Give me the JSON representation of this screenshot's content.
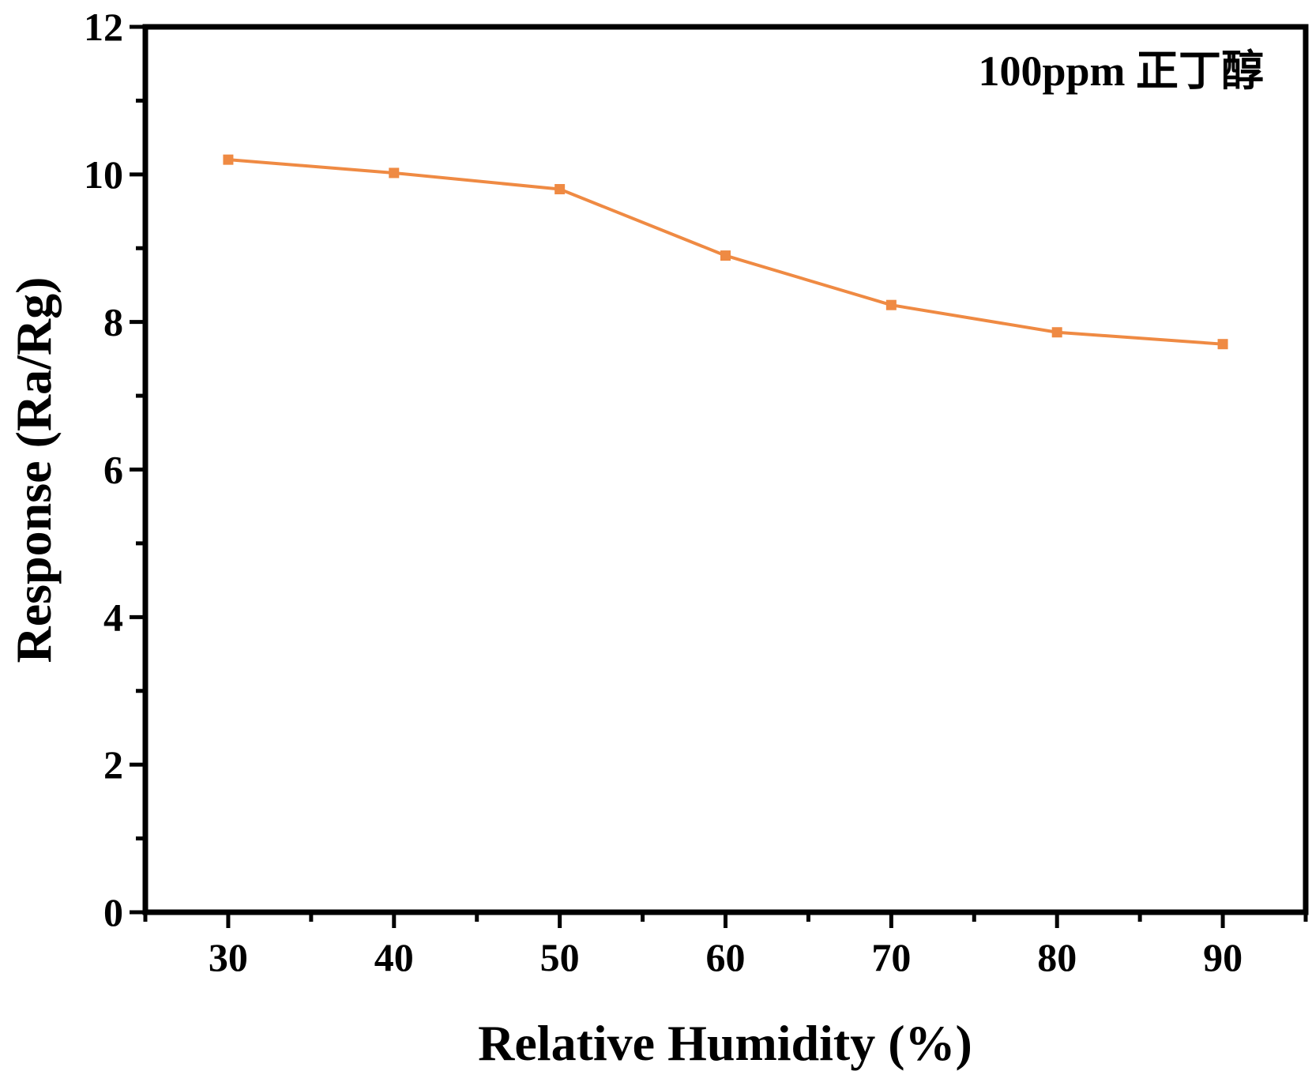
{
  "chart_data": {
    "type": "line",
    "xlabel": "Relative Humidity (%)",
    "ylabel": "Response (Ra/Rg)",
    "annotation": "100ppm 正丁醇",
    "xlim": [
      25,
      95
    ],
    "ylim": [
      0,
      12
    ],
    "x_ticks": [
      "30",
      "40",
      "50",
      "60",
      "70",
      "80",
      "90"
    ],
    "y_ticks": [
      "0",
      "2",
      "4",
      "6",
      "8",
      "10",
      "12"
    ],
    "grid": false,
    "series": [
      {
        "color": "#ef8a43",
        "marker": "square",
        "x": [
          30,
          40,
          50,
          60,
          70,
          80,
          90
        ],
        "y": [
          10.2,
          10.02,
          9.8,
          8.9,
          8.23,
          7.86,
          7.7
        ]
      }
    ]
  }
}
